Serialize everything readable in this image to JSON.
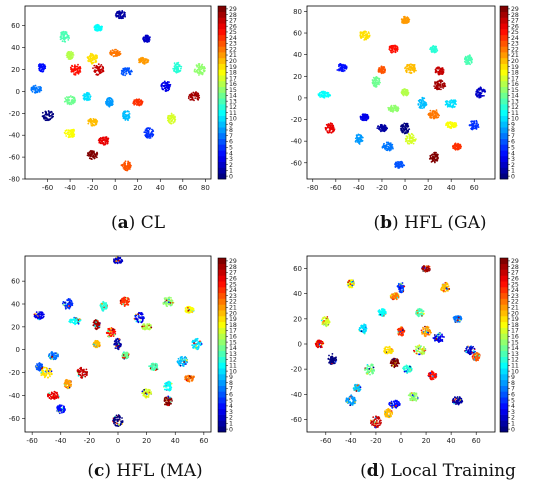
{
  "figure": {
    "panels": [
      {
        "letter": "a",
        "title": "CL"
      },
      {
        "letter": "b",
        "title": "HFL (GA)"
      },
      {
        "letter": "c",
        "title": "HFL (MA)"
      },
      {
        "letter": "d",
        "title": "Local Training"
      }
    ],
    "colormap": "jet",
    "colorbar_ticks": [
      0,
      1,
      2,
      3,
      4,
      5,
      6,
      7,
      8,
      9,
      10,
      11,
      12,
      13,
      14,
      15,
      16,
      17,
      18,
      19,
      20,
      21,
      22,
      23,
      24,
      25,
      26,
      27,
      28,
      29
    ]
  },
  "chart_data": [
    {
      "type": "scatter",
      "title": "(a) CL",
      "xlim": [
        -80,
        85
      ],
      "ylim": [
        -80,
        78
      ],
      "xticks": [
        -60,
        -40,
        -20,
        0,
        20,
        40,
        60,
        80
      ],
      "yticks": [
        -80,
        -60,
        -40,
        -20,
        0,
        20,
        40,
        60
      ],
      "color_range": [
        0,
        29
      ],
      "clusters": [
        {
          "x": 5,
          "y": 70,
          "label": 1
        },
        {
          "x": -15,
          "y": 58,
          "label": 11
        },
        {
          "x": -45,
          "y": 50,
          "label": 13
        },
        {
          "x": 28,
          "y": 48,
          "label": 2
        },
        {
          "x": -40,
          "y": 33,
          "label": 16
        },
        {
          "x": -20,
          "y": 30,
          "label": 19
        },
        {
          "x": 0,
          "y": 35,
          "label": 22
        },
        {
          "x": 25,
          "y": 28,
          "label": 21
        },
        {
          "x": -65,
          "y": 22,
          "label": 4
        },
        {
          "x": -35,
          "y": 20,
          "label": 25
        },
        {
          "x": -15,
          "y": 20,
          "label": 27
        },
        {
          "x": 10,
          "y": 18,
          "label": 6
        },
        {
          "x": 55,
          "y": 22,
          "label": 12
        },
        {
          "x": 75,
          "y": 20,
          "label": 15
        },
        {
          "x": -70,
          "y": 2,
          "label": 7
        },
        {
          "x": -40,
          "y": -8,
          "label": 14
        },
        {
          "x": -25,
          "y": -5,
          "label": 10
        },
        {
          "x": -5,
          "y": -10,
          "label": 8
        },
        {
          "x": 20,
          "y": -10,
          "label": 24
        },
        {
          "x": 45,
          "y": 5,
          "label": 3
        },
        {
          "x": 70,
          "y": -5,
          "label": 28
        },
        {
          "x": -60,
          "y": -22,
          "label": 0
        },
        {
          "x": -20,
          "y": -28,
          "label": 20
        },
        {
          "x": 10,
          "y": -22,
          "label": 9
        },
        {
          "x": 50,
          "y": -25,
          "label": 17
        },
        {
          "x": -40,
          "y": -38,
          "label": 18
        },
        {
          "x": 30,
          "y": -38,
          "label": 5
        },
        {
          "x": -20,
          "y": -58,
          "label": 29
        },
        {
          "x": 10,
          "y": -68,
          "label": 23
        },
        {
          "x": -10,
          "y": -45,
          "label": 26
        }
      ]
    },
    {
      "type": "scatter",
      "title": "(b) HFL (GA)",
      "xlim": [
        -85,
        78
      ],
      "ylim": [
        -75,
        85
      ],
      "xticks": [
        -80,
        -60,
        -40,
        -20,
        0,
        20,
        40,
        60
      ],
      "yticks": [
        -60,
        -40,
        -20,
        0,
        20,
        40,
        60,
        80
      ],
      "color_range": [
        0,
        29
      ],
      "clusters": [
        {
          "x": 0,
          "y": 72,
          "label": 21
        },
        {
          "x": -35,
          "y": 58,
          "label": 19
        },
        {
          "x": -10,
          "y": 45,
          "label": 25
        },
        {
          "x": 25,
          "y": 45,
          "label": 12
        },
        {
          "x": -55,
          "y": 28,
          "label": 4
        },
        {
          "x": -20,
          "y": 26,
          "label": 23
        },
        {
          "x": -25,
          "y": 15,
          "label": 14
        },
        {
          "x": 5,
          "y": 27,
          "label": 20
        },
        {
          "x": 30,
          "y": 25,
          "label": 27
        },
        {
          "x": 55,
          "y": 35,
          "label": 13
        },
        {
          "x": 30,
          "y": 12,
          "label": 28
        },
        {
          "x": -70,
          "y": 3,
          "label": 11
        },
        {
          "x": 0,
          "y": 5,
          "label": 16
        },
        {
          "x": -35,
          "y": -18,
          "label": 3
        },
        {
          "x": -10,
          "y": -10,
          "label": 15
        },
        {
          "x": 15,
          "y": -5,
          "label": 9
        },
        {
          "x": 40,
          "y": -5,
          "label": 10
        },
        {
          "x": 65,
          "y": 5,
          "label": 2
        },
        {
          "x": -65,
          "y": -28,
          "label": 26
        },
        {
          "x": -20,
          "y": -28,
          "label": 1
        },
        {
          "x": 0,
          "y": -28,
          "label": 0
        },
        {
          "x": 25,
          "y": -15,
          "label": 22
        },
        {
          "x": 40,
          "y": -25,
          "label": 18
        },
        {
          "x": 60,
          "y": -25,
          "label": 5
        },
        {
          "x": -40,
          "y": -38,
          "label": 8
        },
        {
          "x": 5,
          "y": -38,
          "label": 17
        },
        {
          "x": -5,
          "y": -62,
          "label": 6
        },
        {
          "x": 25,
          "y": -55,
          "label": 29
        },
        {
          "x": -15,
          "y": -45,
          "label": 7
        },
        {
          "x": 45,
          "y": -45,
          "label": 24
        }
      ]
    },
    {
      "type": "scatter",
      "title": "(c) HFL (MA)",
      "xlim": [
        -65,
        65
      ],
      "ylim": [
        -72,
        82
      ],
      "xticks": [
        -60,
        -40,
        -20,
        0,
        20,
        40,
        60
      ],
      "yticks": [
        -60,
        -40,
        -20,
        0,
        20,
        40,
        60
      ],
      "color_range": [
        0,
        29
      ],
      "clusters": [
        {
          "x": 0,
          "y": 78,
          "label": 2
        },
        {
          "x": -55,
          "y": 30,
          "label": 3
        },
        {
          "x": -35,
          "y": 40,
          "label": 5
        },
        {
          "x": -10,
          "y": 38,
          "label": 12
        },
        {
          "x": 5,
          "y": 42,
          "label": 24
        },
        {
          "x": 35,
          "y": 42,
          "label": 15
        },
        {
          "x": 50,
          "y": 35,
          "label": 18
        },
        {
          "x": -30,
          "y": 25,
          "label": 11
        },
        {
          "x": -15,
          "y": 22,
          "label": 28
        },
        {
          "x": 15,
          "y": 28,
          "label": 3
        },
        {
          "x": 20,
          "y": 20,
          "label": 16
        },
        {
          "x": -5,
          "y": 15,
          "label": 25
        },
        {
          "x": -15,
          "y": 5,
          "label": 20
        },
        {
          "x": -45,
          "y": -5,
          "label": 7
        },
        {
          "x": 0,
          "y": 5,
          "label": 1
        },
        {
          "x": 55,
          "y": 5,
          "label": 10
        },
        {
          "x": -55,
          "y": -15,
          "label": 6
        },
        {
          "x": 5,
          "y": -5,
          "label": 14
        },
        {
          "x": -25,
          "y": -20,
          "label": 27
        },
        {
          "x": 25,
          "y": -15,
          "label": 13
        },
        {
          "x": 50,
          "y": -25,
          "label": 22
        },
        {
          "x": -35,
          "y": -30,
          "label": 21
        },
        {
          "x": 35,
          "y": -32,
          "label": 11
        },
        {
          "x": -45,
          "y": -40,
          "label": 26
        },
        {
          "x": 20,
          "y": -38,
          "label": 17
        },
        {
          "x": -40,
          "y": -52,
          "label": 4
        },
        {
          "x": 35,
          "y": -45,
          "label": 29
        },
        {
          "x": 0,
          "y": -62,
          "label": 0
        },
        {
          "x": -50,
          "y": -20,
          "label": 19
        },
        {
          "x": 45,
          "y": -10,
          "label": 9
        }
      ]
    },
    {
      "type": "scatter",
      "title": "(d) Local Training",
      "xlim": [
        -75,
        75
      ],
      "ylim": [
        -70,
        70
      ],
      "xticks": [
        -60,
        -40,
        -20,
        0,
        20,
        40,
        60
      ],
      "yticks": [
        -60,
        -40,
        -20,
        0,
        20,
        40,
        60
      ],
      "color_range": [
        0,
        29
      ],
      "clusters": [
        {
          "x": 20,
          "y": 60,
          "label": 28
        },
        {
          "x": -40,
          "y": 48,
          "label": 18
        },
        {
          "x": 0,
          "y": 45,
          "label": 5
        },
        {
          "x": 35,
          "y": 45,
          "label": 20
        },
        {
          "x": -5,
          "y": 38,
          "label": 22
        },
        {
          "x": -60,
          "y": 18,
          "label": 17
        },
        {
          "x": -15,
          "y": 25,
          "label": 11
        },
        {
          "x": 15,
          "y": 25,
          "label": 13
        },
        {
          "x": 45,
          "y": 20,
          "label": 7
        },
        {
          "x": -30,
          "y": 12,
          "label": 10
        },
        {
          "x": 0,
          "y": 10,
          "label": 24
        },
        {
          "x": 30,
          "y": 5,
          "label": 3
        },
        {
          "x": -65,
          "y": 0,
          "label": 26
        },
        {
          "x": -10,
          "y": -5,
          "label": 19
        },
        {
          "x": 15,
          "y": -5,
          "label": 16
        },
        {
          "x": 55,
          "y": -5,
          "label": 2
        },
        {
          "x": 60,
          "y": -10,
          "label": 23
        },
        {
          "x": -55,
          "y": -12,
          "label": 0
        },
        {
          "x": -25,
          "y": -20,
          "label": 14
        },
        {
          "x": 5,
          "y": -20,
          "label": 12
        },
        {
          "x": -35,
          "y": -35,
          "label": 9
        },
        {
          "x": 10,
          "y": -42,
          "label": 15
        },
        {
          "x": 45,
          "y": -45,
          "label": 1
        },
        {
          "x": -40,
          "y": -45,
          "label": 8
        },
        {
          "x": -10,
          "y": -55,
          "label": 20
        },
        {
          "x": -20,
          "y": -62,
          "label": 27
        },
        {
          "x": -5,
          "y": -48,
          "label": 4
        },
        {
          "x": 25,
          "y": -25,
          "label": 25
        },
        {
          "x": -5,
          "y": -15,
          "label": 29
        },
        {
          "x": 20,
          "y": 10,
          "label": 21
        }
      ]
    }
  ]
}
